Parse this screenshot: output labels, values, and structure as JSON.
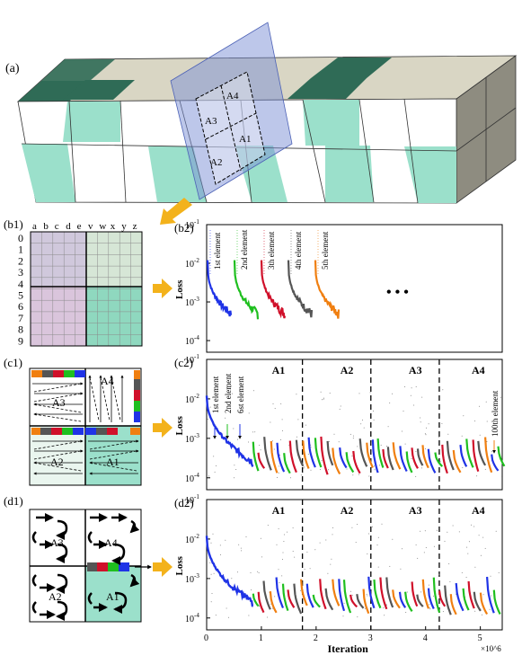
{
  "panel_a": {
    "label": "(a)",
    "regions": [
      "A3",
      "A4",
      "A2",
      "A1"
    ]
  },
  "panel_b1": {
    "label": "(b1)",
    "col_letters": [
      "a",
      "b",
      "c",
      "d",
      "e",
      "v",
      "w",
      "x",
      "y",
      "z"
    ],
    "row_numbers": [
      "0",
      "1",
      "2",
      "3",
      "4",
      "5",
      "6",
      "7",
      "8",
      "9"
    ]
  },
  "panel_c1": {
    "label": "(c1)",
    "regions": [
      "A3",
      "A4",
      "A2",
      "A1"
    ]
  },
  "panel_d1": {
    "label": "(d1)",
    "regions": [
      "A3",
      "A4",
      "A2",
      "A1"
    ]
  },
  "colors": {
    "series": [
      "#1f33e6",
      "#1fbf1f",
      "#d0102a",
      "#555555",
      "#f07f10"
    ],
    "dark_green": "#2f6b56",
    "mint": "#9be0cb",
    "tan": "#d9d6c4",
    "plane": "#7b90d6",
    "arrow": "#f3b21b"
  },
  "chart_data": [
    {
      "type": "line",
      "panel": "(b2)",
      "ylabel": "Loss",
      "yscale": "log",
      "ylim": [
        5e-05,
        0.1
      ],
      "yticks": [
        "10-1",
        "10-2",
        "10-3",
        "10-4"
      ],
      "series": [
        {
          "name": "1st element",
          "start": 0.012,
          "end": 0.0005
        },
        {
          "name": "2nd element",
          "start": 0.012,
          "end": 0.0005
        },
        {
          "name": "3th element",
          "start": 0.012,
          "end": 0.0005
        },
        {
          "name": "4th element",
          "start": 0.012,
          "end": 0.0005
        },
        {
          "name": "5th element",
          "start": 0.012,
          "end": 0.0005
        }
      ],
      "annotations": [
        "• • •"
      ]
    },
    {
      "type": "line",
      "panel": "(c2)",
      "ylabel": "Loss",
      "yscale": "log",
      "ylim": [
        5e-05,
        0.1
      ],
      "yticks": [
        "10-1",
        "10-2",
        "10-3",
        "10-4"
      ],
      "xlim": [
        0,
        5.4
      ],
      "regions": [
        "A1",
        "A2",
        "A3",
        "A4"
      ],
      "region_bounds": [
        1.75,
        3.0,
        4.25
      ],
      "start_loss": 0.012,
      "plateau_loss": 0.00015,
      "annotations": [
        "1st element",
        "2nd element",
        "6st element",
        "100th element"
      ]
    },
    {
      "type": "line",
      "panel": "(d2)",
      "ylabel": "Loss",
      "xlabel": "Iteration",
      "x_multiplier": "×10^6",
      "yscale": "log",
      "ylim": [
        5e-05,
        0.1
      ],
      "yticks": [
        "10-1",
        "10-2",
        "10-3",
        "10-4"
      ],
      "xlim": [
        0,
        5.4
      ],
      "xticks": [
        "0",
        "1",
        "2",
        "3",
        "4",
        "5"
      ],
      "regions": [
        "A1",
        "A2",
        "A3",
        "A4"
      ],
      "region_bounds": [
        1.75,
        3.0,
        4.25
      ],
      "start_loss": 0.012,
      "plateau_loss": 0.00015
    }
  ]
}
